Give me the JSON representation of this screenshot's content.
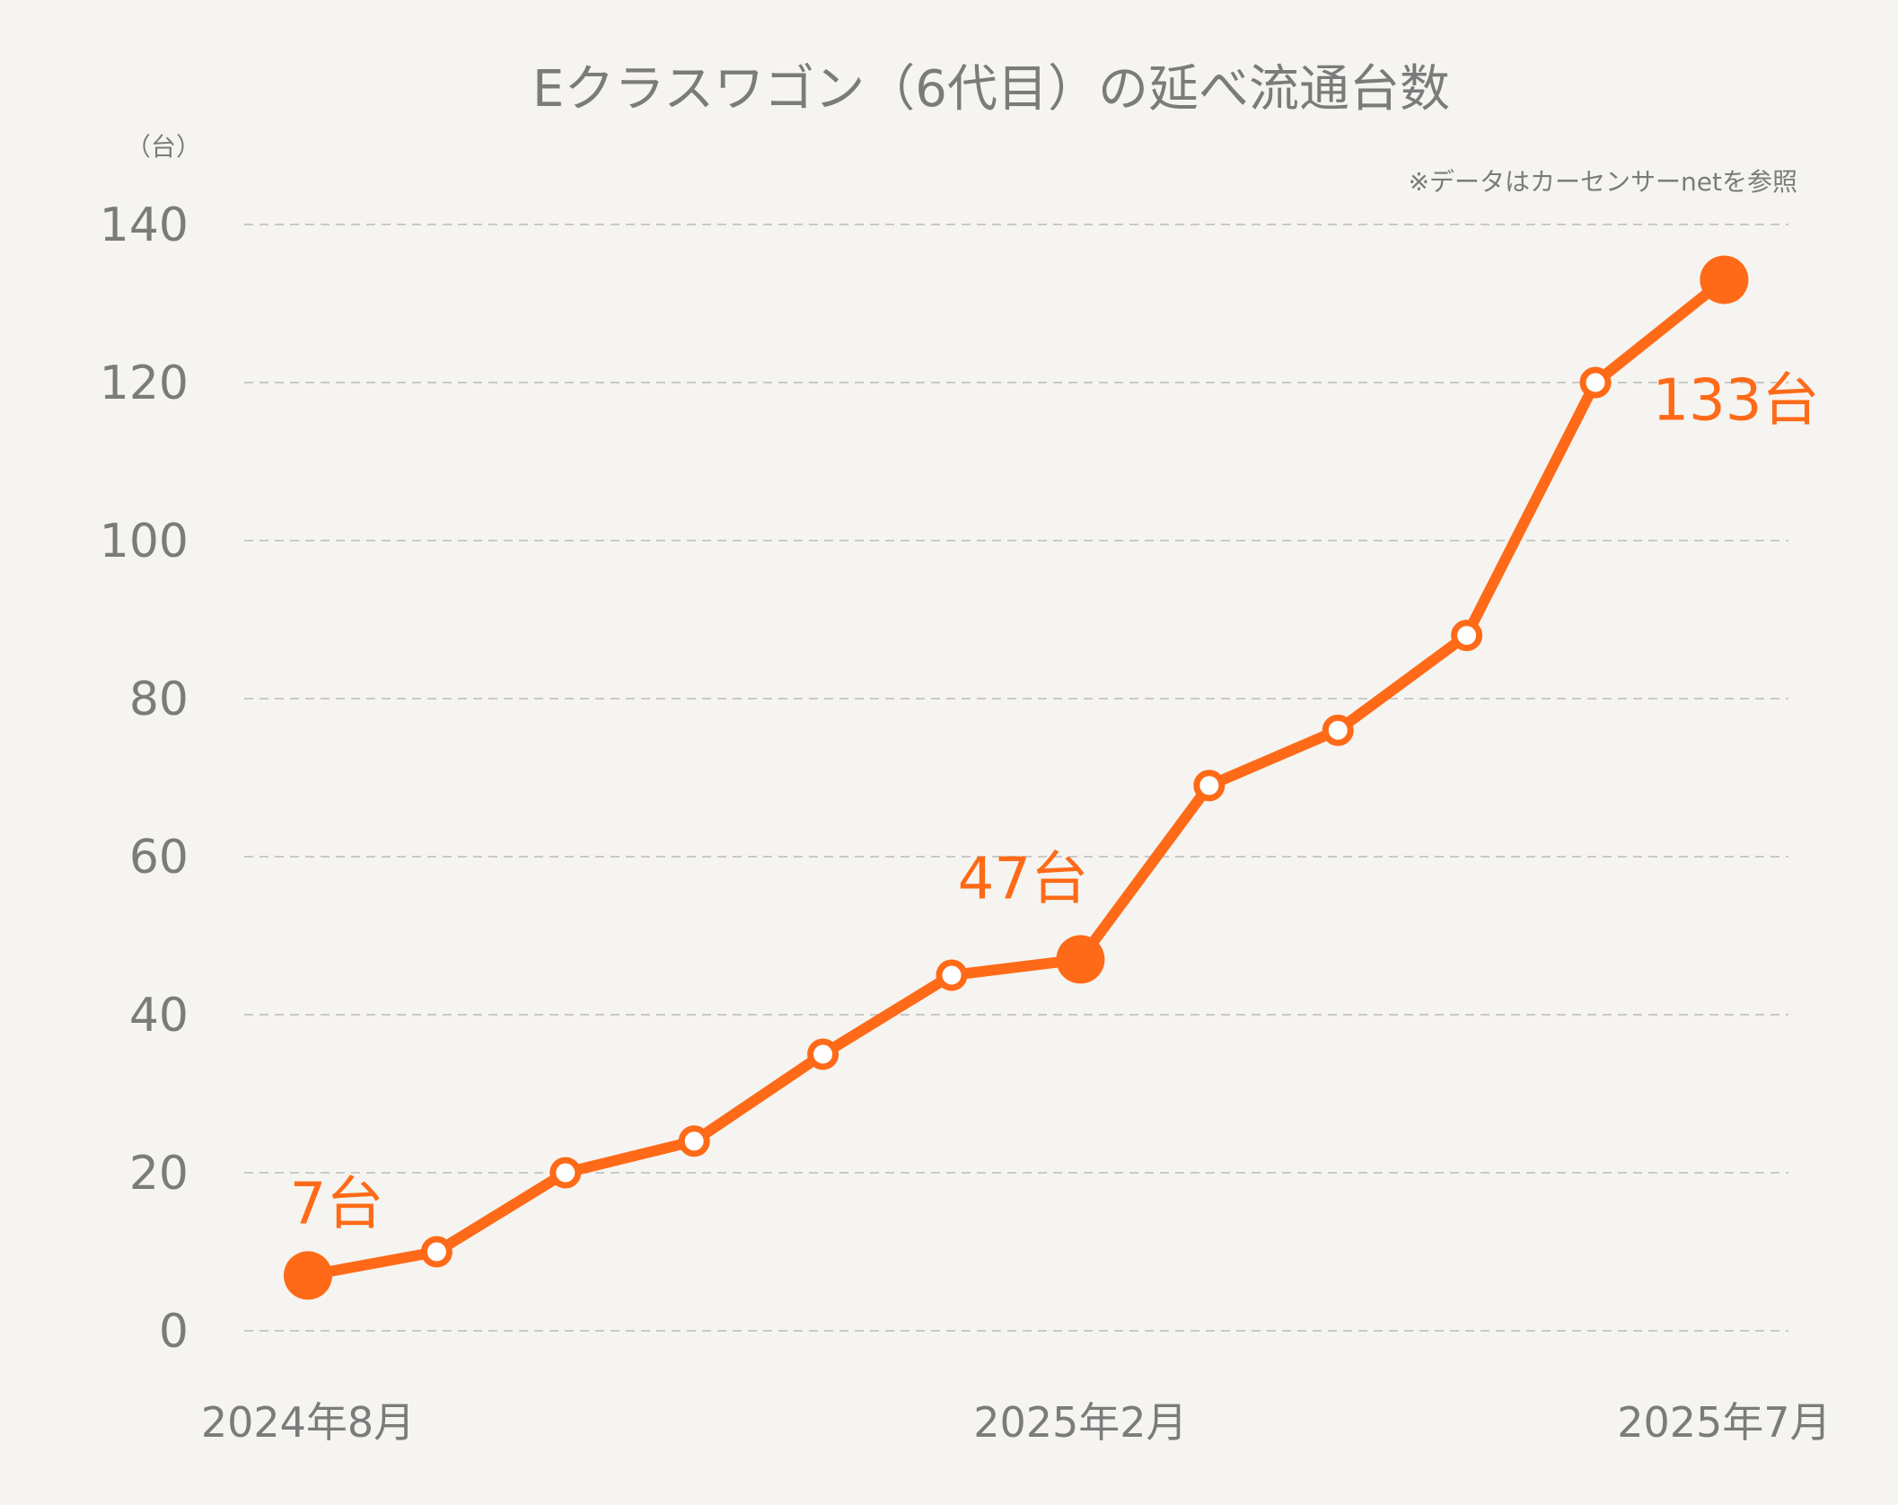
{
  "chart_data": {
    "type": "line",
    "title": "Eクラスワゴン（6代目）の延べ流通台数",
    "unit_label": "（台）",
    "note": "※データはカーセンサーnetを参照",
    "x_tick_labels": [
      {
        "index": 0,
        "label": "2024年8月"
      },
      {
        "index": 6,
        "label": "2025年2月"
      },
      {
        "index": 11,
        "label": "2025年7月"
      }
    ],
    "y_ticks": [
      0,
      20,
      40,
      60,
      80,
      100,
      120,
      140
    ],
    "ylim": [
      0,
      140
    ],
    "grid": true,
    "series": [
      {
        "values": [
          7,
          10,
          20,
          24,
          35,
          45,
          47,
          69,
          76,
          88,
          120,
          133
        ]
      }
    ],
    "highlighted_points": [
      {
        "index": 0,
        "label": "7台"
      },
      {
        "index": 6,
        "label": "47台"
      },
      {
        "index": 11,
        "label": "133台"
      }
    ],
    "colors": {
      "line": "#fe6a18",
      "axis_text": "#7b7b7b",
      "grid": "#c9c9c9",
      "background": "#f5f4f0"
    }
  }
}
